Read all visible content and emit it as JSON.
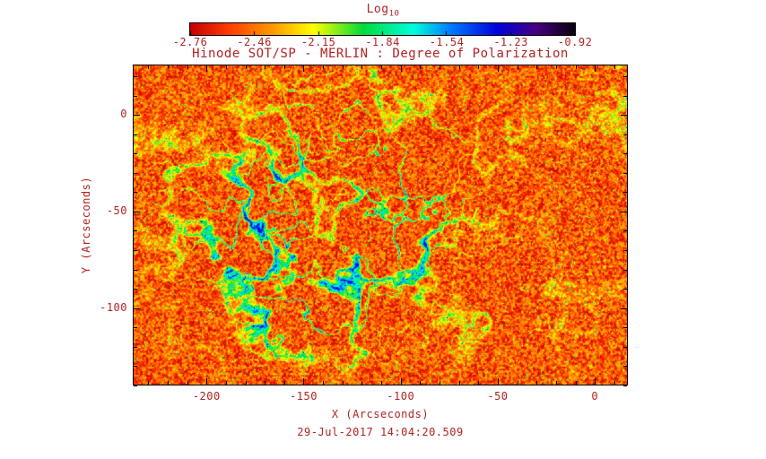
{
  "colors": {
    "text": "#b22222",
    "background": "#ffffff",
    "frame": "#000000"
  },
  "colorbar": {
    "label": "Log",
    "label_sub": "10",
    "ticks": [
      "-2.76",
      "-2.46",
      "-2.15",
      "-1.84",
      "-1.54",
      "-1.23",
      "-0.92"
    ]
  },
  "chart": {
    "title": "Hinode SOT/SP - MERLIN : Degree of Polarization",
    "xlabel": "X (Arcseconds)",
    "ylabel": "Y (Arcseconds)",
    "x_ticks": [
      "-200",
      "-150",
      "-100",
      "-50",
      "0"
    ],
    "y_ticks": [
      "0",
      "-50",
      "-100"
    ],
    "timestamp": "29-Jul-2017 14:04:20.509"
  },
  "chart_data": {
    "type": "heatmap",
    "title": "Hinode SOT/SP - MERLIN : Degree of Polarization",
    "xlabel": "X (Arcseconds)",
    "ylabel": "Y (Arcseconds)",
    "xlim": [
      -238,
      17
    ],
    "ylim": [
      -140,
      26
    ],
    "x_major_ticks": [
      -200,
      -150,
      -100,
      -50,
      0
    ],
    "y_major_ticks": [
      0,
      -50,
      -100
    ],
    "minor_tick_step": 10,
    "colorbar_label": "Log10",
    "colorbar_ticks": [
      -2.76,
      -2.46,
      -2.15,
      -1.84,
      -1.54,
      -1.23,
      -0.92
    ],
    "value_range_log10": [
      -2.76,
      -0.92
    ],
    "background_level_log10": -2.7,
    "network_level_log10": -1.4,
    "colormap_stops": [
      {
        "t": 0.0,
        "color": "#c80000"
      },
      {
        "t": 0.1,
        "color": "#ff3c00"
      },
      {
        "t": 0.22,
        "color": "#ffa000"
      },
      {
        "t": 0.32,
        "color": "#ffff00"
      },
      {
        "t": 0.45,
        "color": "#00dc3c"
      },
      {
        "t": 0.58,
        "color": "#00ffdc"
      },
      {
        "t": 0.68,
        "color": "#0078ff"
      },
      {
        "t": 0.8,
        "color": "#0000dc"
      },
      {
        "t": 0.9,
        "color": "#460082"
      },
      {
        "t": 1.0,
        "color": "#0a000f"
      }
    ],
    "timestamp": "29-Jul-2017 14:04:20.509"
  }
}
